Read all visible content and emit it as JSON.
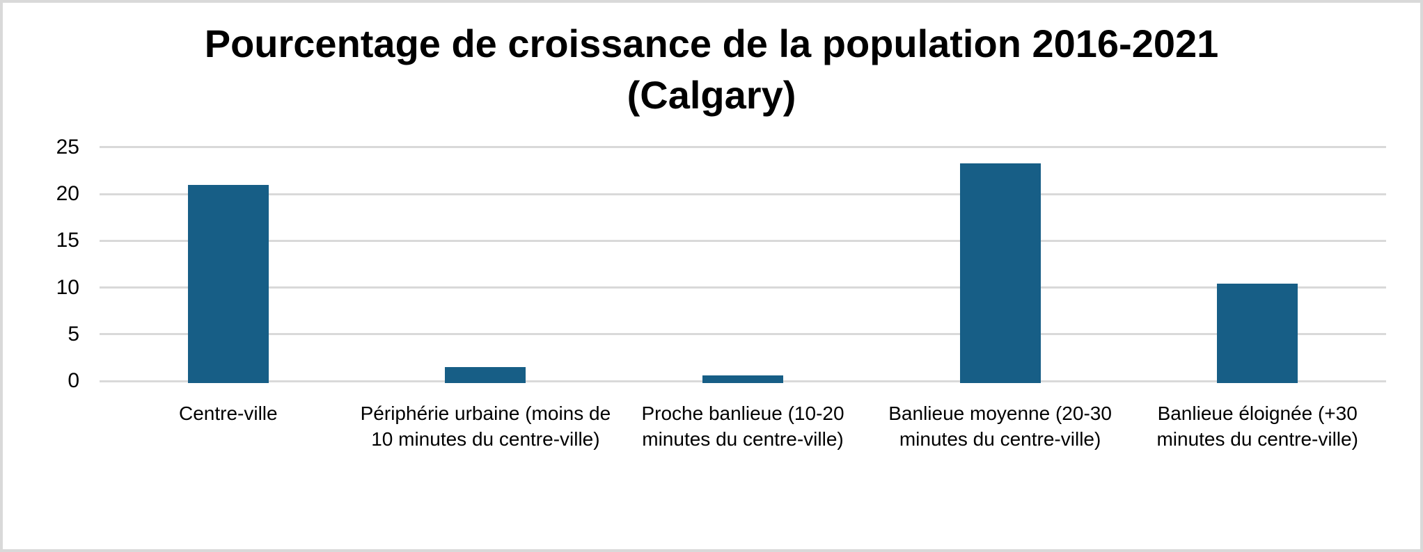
{
  "chart_data": {
    "type": "bar",
    "title": "Pourcentage de croissance de la population 2016-2021 (Calgary)",
    "categories": [
      "Centre-ville",
      "Périphérie urbaine (moins de 10 minutes du centre-ville)",
      "Proche banlieue (10-20 minutes du centre-ville)",
      "Banlieue moyenne (20-30 minutes du centre-ville)",
      "Banlieue éloignée (+30 minutes du centre-ville)"
    ],
    "values": [
      21.0,
      1.5,
      0.6,
      23.3,
      10.4
    ],
    "xlabel": "",
    "ylabel": "",
    "ylim": [
      0,
      25
    ],
    "yticks": [
      0,
      5,
      10,
      15,
      20,
      25
    ],
    "grid": true,
    "legend": false,
    "bar_color": "#175e86",
    "gridline_color": "#d9d9d9",
    "frame_color": "#d9d9d9",
    "background_color": "#ffffff",
    "title_color": "#000000"
  }
}
